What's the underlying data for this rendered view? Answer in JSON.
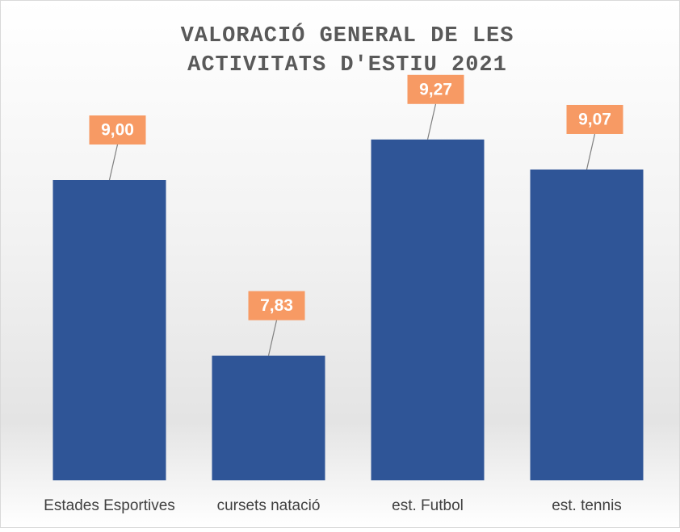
{
  "chart_data": {
    "type": "bar",
    "title": [
      "VALORACIÓ GENERAL DE LES",
      "ACTIVITATS D'ESTIU 2021"
    ],
    "categories": [
      "Estades Esportives",
      "cursets natació",
      "est. Futbol",
      "est. tennis"
    ],
    "values": [
      9.0,
      7.83,
      9.27,
      9.07
    ],
    "value_labels": [
      "9,00",
      "7,83",
      "9,27",
      "9,07"
    ],
    "color": "#2f5597",
    "label_color": "#f79a64",
    "ylim": [
      7,
      9.5
    ]
  }
}
